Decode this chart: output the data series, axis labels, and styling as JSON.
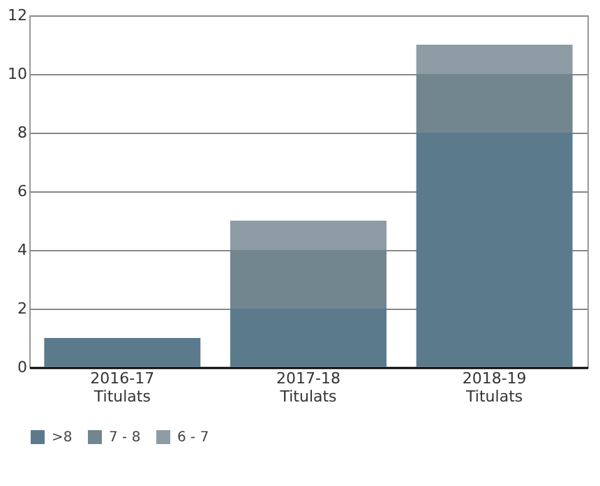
{
  "chart_data": {
    "type": "bar",
    "stacked": true,
    "categories": [
      "2016-17\nTitulats",
      "2017-18\nTitulats",
      "2018-19\nTitulats"
    ],
    "series": [
      {
        "name": ">8",
        "color": "#5b7b8d",
        "values": [
          1,
          2,
          8
        ]
      },
      {
        "name": "7 - 8",
        "color": "#72868f",
        "values": [
          0,
          2,
          2
        ]
      },
      {
        "name": "6 - 7",
        "color": "#8d9ca5",
        "values": [
          0,
          1,
          1
        ]
      }
    ],
    "ylim": [
      0,
      12
    ],
    "yticks": [
      0,
      2,
      4,
      6,
      8,
      10,
      12
    ],
    "grid": "y",
    "legend": "bottom"
  }
}
